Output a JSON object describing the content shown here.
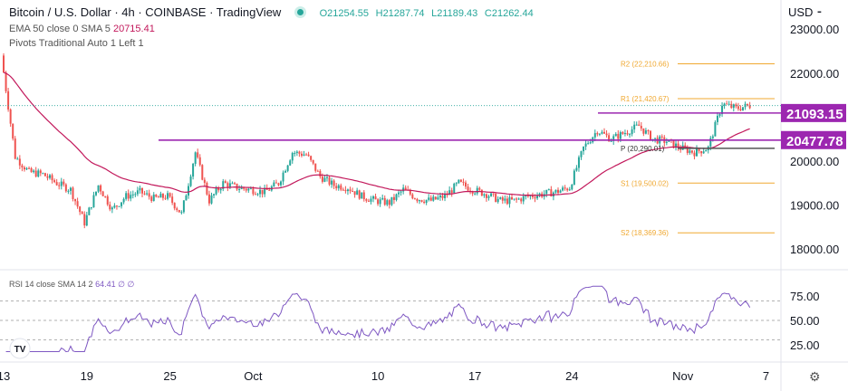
{
  "header": {
    "title": "Bitcoin / U.S. Dollar · 4h · COINBASE · TradingView",
    "open": "O21254.55",
    "high": "H21287.74",
    "low": "L21189.43",
    "close": "C21262.44",
    "currency": "USD"
  },
  "indicators": {
    "ema_label": "EMA 50 close 0 SMA 5",
    "ema_value": "20715.41",
    "pivots_label": "Pivots Traditional Auto 1 Left 1",
    "rsi_label": "RSI 14 close SMA 14 2",
    "rsi_value": "64.41",
    "rsi_extra": "∅ ∅"
  },
  "colors": {
    "up": "#26a69a",
    "down": "#ef5350",
    "ema": "#c2185b",
    "level": "#9c27b0",
    "pivot": "#f0a830",
    "rsi": "#7e57c2"
  },
  "chart_data": {
    "type": "candlestick",
    "timeframe": "4h",
    "ylim": [
      17700,
      23300
    ],
    "price_ticks": [
      "23000.00",
      "22000.00",
      "20000.00",
      "19000.00",
      "18000.00"
    ],
    "x_ticks": [
      "13",
      "19",
      "25",
      "Oct",
      "10",
      "17",
      "24",
      "Nov",
      "7"
    ],
    "daily_closes": [
      22400,
      20100,
      19750,
      19700,
      19500,
      19350,
      18600,
      19450,
      18900,
      19200,
      19300,
      19150,
      19200,
      18800,
      20200,
      19100,
      19500,
      19400,
      19350,
      19300,
      19500,
      20200,
      20150,
      19650,
      19450,
      19400,
      19200,
      19100,
      19050,
      19350,
      19150,
      19100,
      19200,
      19500,
      19350,
      19250,
      19100,
      19100,
      19200,
      19250,
      19300,
      19400,
      20300,
      20700,
      20500,
      20650,
      20800,
      20500,
      20450,
      20300,
      20200,
      20300,
      21300,
      21200,
      21262
    ],
    "levels": [
      {
        "label": "21093.15",
        "value": 21093.15
      },
      {
        "label": "20477.78",
        "value": 20477.78
      }
    ],
    "pivots": [
      {
        "label": "R2 (22,210.66)",
        "value": 22210.66
      },
      {
        "label": "R1 (21,420.67)",
        "value": 21420.67
      },
      {
        "label": "P (20,290.01)",
        "value": 20290.01
      },
      {
        "label": "S1 (19,500.02)",
        "value": 19500.02
      },
      {
        "label": "S2 (18,369.36)",
        "value": 18369.36
      }
    ],
    "rsi": {
      "ylim": [
        15,
        85
      ],
      "ticks": [
        "75.00",
        "50.00",
        "25.00"
      ],
      "bands": [
        70,
        50,
        30
      ]
    }
  }
}
